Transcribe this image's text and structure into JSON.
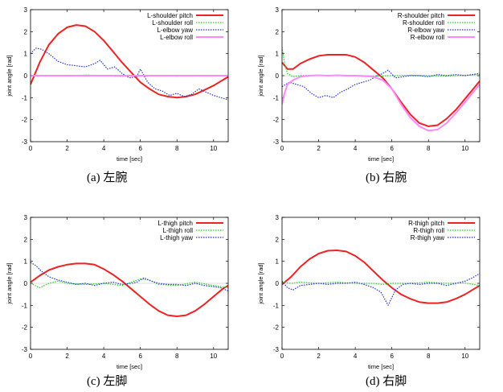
{
  "chart_data": [
    {
      "type": "line",
      "caption": "(a) 左腕",
      "xlabel": "time [sec]",
      "ylabel": "joint angle [rad]",
      "xlim": [
        0,
        10.8
      ],
      "ylim": [
        -3,
        3
      ],
      "xticks": [
        0,
        2,
        4,
        6,
        8,
        10
      ],
      "yticks": [
        -3,
        -2,
        -1,
        0,
        1,
        2,
        3
      ],
      "legend_position": "top-right",
      "series": [
        {
          "name": "L-shoulder pitch",
          "color": "#ee2222",
          "style": "solid",
          "x": [
            0,
            0.5,
            1,
            1.5,
            2,
            2.5,
            3,
            3.5,
            4,
            4.5,
            5,
            5.5,
            6,
            6.5,
            7,
            7.5,
            8,
            8.5,
            9,
            9.5,
            10,
            10.5,
            10.8
          ],
          "y": [
            -0.4,
            0.6,
            1.4,
            1.9,
            2.2,
            2.3,
            2.25,
            2.0,
            1.6,
            1.1,
            0.6,
            0.15,
            -0.3,
            -0.6,
            -0.85,
            -0.95,
            -1.0,
            -0.95,
            -0.85,
            -0.65,
            -0.45,
            -0.2,
            -0.05
          ]
        },
        {
          "name": "L-shoulder roll",
          "color": "#22cc22",
          "style": "dotted",
          "x": [
            0,
            1,
            2,
            3,
            4,
            5,
            6,
            7,
            8,
            9,
            10,
            10.8
          ],
          "y": [
            0.0,
            0.02,
            -0.02,
            0.03,
            0.0,
            -0.03,
            0.02,
            0.0,
            -0.02,
            0.02,
            0.0,
            0.0
          ]
        },
        {
          "name": "L-elbow yaw",
          "color": "#2233cc",
          "style": "dotted",
          "x": [
            0,
            0.3,
            0.6,
            1.0,
            1.5,
            2.0,
            2.5,
            3.0,
            3.5,
            3.8,
            4.2,
            4.6,
            5.0,
            5.4,
            5.8,
            6.0,
            6.4,
            6.8,
            7.2,
            7.6,
            8.0,
            8.4,
            8.8,
            9.2,
            9.6,
            10.0,
            10.4,
            10.8
          ],
          "y": [
            1.0,
            1.25,
            1.2,
            1.0,
            0.65,
            0.5,
            0.45,
            0.4,
            0.55,
            0.7,
            0.3,
            0.4,
            0.1,
            -0.1,
            -0.05,
            0.3,
            -0.3,
            -0.6,
            -0.7,
            -0.9,
            -0.8,
            -0.95,
            -0.85,
            -0.6,
            -0.75,
            -0.9,
            -1.0,
            -1.1
          ]
        },
        {
          "name": "L-elbow roll",
          "color": "#ff88ff",
          "style": "solid",
          "x": [
            0,
            2,
            4,
            6,
            8,
            10,
            10.8
          ],
          "y": [
            0.0,
            0.0,
            0.0,
            0.0,
            0.0,
            0.0,
            0.0
          ]
        }
      ]
    },
    {
      "type": "line",
      "caption": "(b) 右腕",
      "xlabel": "time [sec]",
      "ylabel": "joint angle [rad]",
      "xlim": [
        0,
        10.8
      ],
      "ylim": [
        -3,
        3
      ],
      "xticks": [
        0,
        2,
        4,
        6,
        8,
        10
      ],
      "yticks": [
        -3,
        -2,
        -1,
        0,
        1,
        2,
        3
      ],
      "legend_position": "top-right",
      "series": [
        {
          "name": "R-shoulder pitch",
          "color": "#ee2222",
          "style": "solid",
          "x": [
            0,
            0.3,
            0.6,
            1,
            1.5,
            2,
            2.5,
            3,
            3.5,
            4,
            4.5,
            5,
            5.5,
            6,
            6.5,
            7,
            7.5,
            8,
            8.5,
            9,
            9.5,
            10,
            10.5,
            10.8
          ],
          "y": [
            0.6,
            0.3,
            0.3,
            0.55,
            0.75,
            0.9,
            0.95,
            0.95,
            0.95,
            0.85,
            0.6,
            0.25,
            -0.1,
            -0.6,
            -1.2,
            -1.75,
            -2.15,
            -2.3,
            -2.25,
            -1.95,
            -1.55,
            -1.05,
            -0.55,
            -0.25
          ]
        },
        {
          "name": "R-shoulder roll",
          "color": "#22cc22",
          "style": "dotted",
          "x": [
            0,
            0.15,
            0.3,
            0.6,
            1,
            2,
            3,
            4,
            5,
            6,
            7,
            8,
            9,
            10,
            10.8
          ],
          "y": [
            1.3,
            0.5,
            0.1,
            -0.05,
            0.0,
            0.02,
            0.0,
            0.02,
            -0.02,
            0.0,
            0.02,
            0.0,
            -0.02,
            0.02,
            0.05
          ]
        },
        {
          "name": "R-elbow yaw",
          "color": "#2233cc",
          "style": "dotted",
          "x": [
            0,
            0.4,
            0.8,
            1.2,
            1.6,
            2.0,
            2.4,
            2.8,
            3.2,
            3.6,
            4.0,
            4.4,
            4.8,
            5.2,
            5.5,
            5.8,
            6.2,
            6.6,
            7.0,
            7.5,
            8.0,
            8.5,
            9.0,
            9.5,
            10.0,
            10.4,
            10.8
          ],
          "y": [
            -0.5,
            -0.3,
            -0.4,
            -0.5,
            -0.8,
            -1.0,
            -0.9,
            -1.0,
            -0.75,
            -0.6,
            -0.4,
            -0.3,
            -0.2,
            0.0,
            0.1,
            0.25,
            -0.1,
            -0.05,
            0.0,
            0.0,
            -0.05,
            0.05,
            0.0,
            0.05,
            0.0,
            0.05,
            0.1
          ]
        },
        {
          "name": "R-elbow roll",
          "color": "#ff88ff",
          "style": "solid",
          "x": [
            0,
            0.1,
            0.3,
            0.6,
            1,
            1.5,
            2,
            2.5,
            3,
            3.5,
            4,
            4.5,
            5,
            5.5,
            6,
            6.5,
            7,
            7.5,
            8,
            8.5,
            9,
            9.5,
            10,
            10.5,
            10.8
          ],
          "y": [
            -1.3,
            -0.9,
            -0.4,
            -0.2,
            -0.05,
            0.0,
            0.02,
            0.0,
            0.02,
            0.0,
            0.0,
            -0.02,
            -0.05,
            -0.2,
            -0.6,
            -1.3,
            -1.9,
            -2.3,
            -2.5,
            -2.45,
            -2.15,
            -1.7,
            -1.2,
            -0.7,
            -0.4
          ]
        }
      ]
    },
    {
      "type": "line",
      "caption": "(c) 左脚",
      "xlabel": "time [sec]",
      "ylabel": "joint angle [rad]",
      "xlim": [
        0,
        10.8
      ],
      "ylim": [
        -3,
        3
      ],
      "xticks": [
        0,
        2,
        4,
        6,
        8,
        10
      ],
      "yticks": [
        -3,
        -2,
        -1,
        0,
        1,
        2,
        3
      ],
      "legend_position": "top-right",
      "series": [
        {
          "name": "L-thigh pitch",
          "color": "#ee2222",
          "style": "solid",
          "x": [
            0,
            0.5,
            1,
            1.5,
            2,
            2.5,
            3,
            3.5,
            4,
            4.5,
            5,
            5.5,
            6,
            6.5,
            7,
            7.5,
            8,
            8.5,
            9,
            9.5,
            10,
            10.5,
            10.8
          ],
          "y": [
            0.05,
            0.35,
            0.6,
            0.75,
            0.85,
            0.9,
            0.9,
            0.85,
            0.65,
            0.4,
            0.1,
            -0.25,
            -0.6,
            -0.95,
            -1.25,
            -1.45,
            -1.5,
            -1.45,
            -1.25,
            -0.95,
            -0.6,
            -0.25,
            -0.1
          ]
        },
        {
          "name": "L-thigh roll",
          "color": "#22cc22",
          "style": "dotted",
          "x": [
            0,
            0.5,
            1,
            1.5,
            2,
            3,
            4,
            5,
            5.5,
            6,
            6.5,
            7,
            8,
            9,
            10,
            10.8
          ],
          "y": [
            0.0,
            -0.2,
            0.0,
            0.1,
            0.0,
            -0.05,
            0.0,
            -0.1,
            0.05,
            0.2,
            0.15,
            -0.05,
            -0.1,
            0.05,
            -0.1,
            -0.2
          ]
        },
        {
          "name": "L-thigh yaw",
          "color": "#2233cc",
          "style": "dotted",
          "x": [
            0,
            0.3,
            0.6,
            1,
            1.5,
            2,
            2.5,
            3,
            3.5,
            4,
            4.5,
            5,
            5.5,
            5.8,
            6.2,
            6.6,
            7,
            7.5,
            8,
            8.5,
            9,
            9.5,
            10,
            10.4,
            10.8
          ],
          "y": [
            0.95,
            0.8,
            0.55,
            0.3,
            0.15,
            0.05,
            -0.05,
            0.0,
            -0.1,
            0.0,
            0.05,
            -0.05,
            0.0,
            0.05,
            0.25,
            0.1,
            0.0,
            -0.05,
            -0.05,
            -0.1,
            0.0,
            -0.1,
            -0.15,
            -0.2,
            -0.35
          ]
        }
      ]
    },
    {
      "type": "line",
      "caption": "(d) 右脚",
      "xlabel": "time [sec]",
      "ylabel": "joint angle [rad]",
      "xlim": [
        0,
        10.8
      ],
      "ylim": [
        -3,
        3
      ],
      "xticks": [
        0,
        2,
        4,
        6,
        8,
        10
      ],
      "yticks": [
        -3,
        -2,
        -1,
        0,
        1,
        2,
        3
      ],
      "legend_position": "top-right",
      "series": [
        {
          "name": "R-thigh pitch",
          "color": "#ee2222",
          "style": "solid",
          "x": [
            0,
            0.5,
            1,
            1.5,
            2,
            2.5,
            3,
            3.5,
            4,
            4.5,
            5,
            5.5,
            6,
            6.5,
            7,
            7.5,
            8,
            8.5,
            9,
            9.5,
            10,
            10.5,
            10.8
          ],
          "y": [
            -0.05,
            0.3,
            0.75,
            1.1,
            1.35,
            1.48,
            1.5,
            1.45,
            1.25,
            0.95,
            0.55,
            0.15,
            -0.2,
            -0.5,
            -0.7,
            -0.85,
            -0.9,
            -0.9,
            -0.85,
            -0.7,
            -0.5,
            -0.25,
            -0.1
          ]
        },
        {
          "name": "R-thigh roll",
          "color": "#22cc22",
          "style": "dotted",
          "x": [
            0,
            0.5,
            1,
            2,
            3,
            4,
            5,
            5.5,
            6,
            7,
            8,
            9,
            10,
            10.8
          ],
          "y": [
            0.05,
            0.0,
            0.05,
            0.0,
            0.05,
            0.0,
            0.0,
            -0.05,
            0.0,
            0.0,
            0.05,
            0.0,
            0.02,
            -0.1
          ]
        },
        {
          "name": "R-thigh yaw",
          "color": "#2233cc",
          "style": "dotted",
          "x": [
            0,
            0.3,
            0.6,
            1,
            1.5,
            2,
            2.5,
            3,
            3.5,
            4,
            4.5,
            5,
            5.4,
            5.8,
            6.2,
            6.6,
            7,
            7.5,
            8,
            8.5,
            9,
            9.5,
            10,
            10.4,
            10.8
          ],
          "y": [
            0.1,
            -0.2,
            -0.3,
            -0.1,
            -0.05,
            0.0,
            -0.05,
            0.0,
            0.0,
            0.05,
            -0.05,
            -0.2,
            -0.4,
            -1.0,
            -0.3,
            -0.05,
            0.0,
            -0.05,
            0.0,
            0.0,
            -0.1,
            0.0,
            0.1,
            0.25,
            0.45
          ]
        }
      ]
    }
  ]
}
